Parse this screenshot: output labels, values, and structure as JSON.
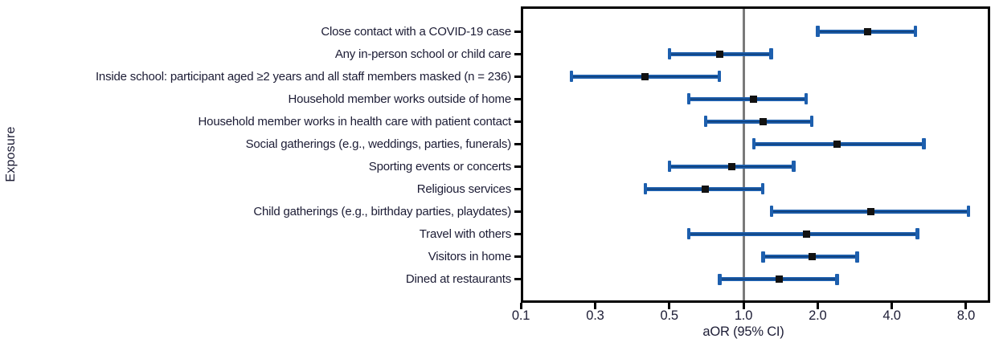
{
  "chart_data": {
    "type": "scatter",
    "subtype": "forest-plot",
    "title": "",
    "xlabel": "aOR (95% CI)",
    "ylabel": "Exposure",
    "x_scale": "log2",
    "x_tick_values": [
      0.1,
      0.3,
      0.5,
      1.0,
      2.0,
      4.0,
      8.0
    ],
    "x_tick_labels": [
      "0.1",
      "0.3",
      "0.5",
      "1.0",
      "2.0",
      "4.0",
      "8.0"
    ],
    "reference_line_x": 1.0,
    "grid": false,
    "legend": false,
    "rows": [
      {
        "label": "Close contact with a COVID-19 case",
        "or": 3.2,
        "ci_low": 2.0,
        "ci_high": 5.0
      },
      {
        "label": "Any in-person school or child care",
        "or": 0.8,
        "ci_low": 0.5,
        "ci_high": 1.3
      },
      {
        "label": "Inside school: participant aged ≥2 years and all staff members masked (n = 236)",
        "or": 0.4,
        "ci_low": 0.2,
        "ci_high": 0.8
      },
      {
        "label": "Household member works outside of home",
        "or": 1.1,
        "ci_low": 0.6,
        "ci_high": 1.8
      },
      {
        "label": "Household member works in health care with patient contact",
        "or": 1.2,
        "ci_low": 0.7,
        "ci_high": 1.9
      },
      {
        "label": "Social gatherings (e.g., weddings, parties, funerals)",
        "or": 2.4,
        "ci_low": 1.1,
        "ci_high": 5.4
      },
      {
        "label": "Sporting events or concerts",
        "or": 0.9,
        "ci_low": 0.5,
        "ci_high": 1.6
      },
      {
        "label": "Religious services",
        "or": 0.7,
        "ci_low": 0.4,
        "ci_high": 1.2
      },
      {
        "label": "Child gatherings (e.g., birthday parties, playdates)",
        "or": 3.3,
        "ci_low": 1.3,
        "ci_high": 8.2
      },
      {
        "label": "Travel with others",
        "or": 1.8,
        "ci_low": 0.6,
        "ci_high": 5.1
      },
      {
        "label": "Visitors in home",
        "or": 1.9,
        "ci_low": 1.2,
        "ci_high": 2.9
      },
      {
        "label": "Dined at restaurants",
        "or": 1.4,
        "ci_low": 0.8,
        "ci_high": 2.4
      }
    ],
    "colors": {
      "ci_bar": "#1d5fae",
      "ci_bar_core": "#0e3a70",
      "marker": "#121212",
      "reference_line": "#7a7a7a",
      "frame": "#000000",
      "text": "#1c1c35"
    }
  }
}
